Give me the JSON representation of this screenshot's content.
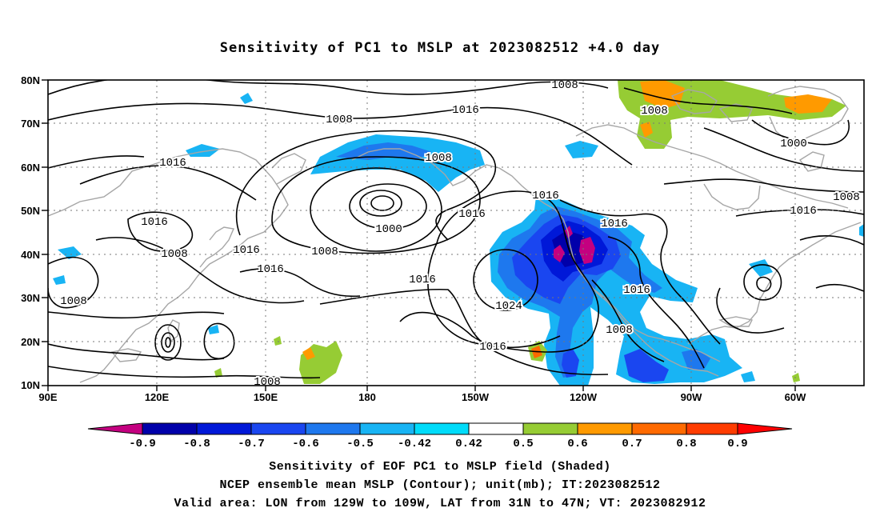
{
  "title": "Sensitivity of PC1 to MSLP at 2023082512 +4.0 day",
  "map": {
    "lat_ticks": [
      "80N",
      "70N",
      "60N",
      "50N",
      "40N",
      "30N",
      "20N",
      "10N"
    ],
    "lon_ticks": [
      "90E",
      "120E",
      "150E",
      "180",
      "150W",
      "120W",
      "90W",
      "60W"
    ],
    "contour_labels": [
      {
        "text": "1008",
        "pos": "top-center"
      },
      {
        "text": "1016",
        "pos": "north-pacific"
      },
      {
        "text": "1008",
        "pos": "bering"
      },
      {
        "text": "1008",
        "pos": "canada-arctic"
      },
      {
        "text": "1000",
        "pos": "greenland"
      },
      {
        "text": "1016",
        "pos": "west-pacific"
      },
      {
        "text": "1008",
        "pos": "aleutian"
      },
      {
        "text": "1016",
        "pos": "alaska-gulf"
      },
      {
        "text": "1016",
        "pos": "northwest-coast"
      },
      {
        "text": "1016",
        "pos": "rockies"
      },
      {
        "text": "1008",
        "pos": "far-east"
      },
      {
        "text": "1016",
        "pos": "east-canada"
      },
      {
        "text": "1016",
        "pos": "asia"
      },
      {
        "text": "1000",
        "pos": "aleutian-low"
      },
      {
        "text": "1008",
        "pos": "japan"
      },
      {
        "text": "1016",
        "pos": "kuril"
      },
      {
        "text": "1008",
        "pos": "low-ring"
      },
      {
        "text": "1016",
        "pos": "central-pacific"
      },
      {
        "text": "1016",
        "pos": "subtropic"
      },
      {
        "text": "1008",
        "pos": "china"
      },
      {
        "text": "1024",
        "pos": "pacific-high"
      },
      {
        "text": "1016",
        "pos": "mexico"
      },
      {
        "text": "1008",
        "pos": "gulf"
      },
      {
        "text": "1016",
        "pos": "tropical-pacific"
      },
      {
        "text": "1008",
        "pos": "equatorial"
      }
    ]
  },
  "colorbar": {
    "labels": [
      "-0.9",
      "-0.8",
      "-0.7",
      "-0.6",
      "-0.5",
      "-0.42",
      "0.42",
      "0.5",
      "0.6",
      "0.7",
      "0.8",
      "0.9"
    ],
    "colors": [
      "#c40080",
      "#0000aa",
      "#0018d8",
      "#1a46f0",
      "#1e78ee",
      "#18b4f4",
      "#00dcfa",
      "#ffffff",
      "#96cc34",
      "#ff9a00",
      "#ff6a00",
      "#ff3c00",
      "#ff0000",
      "#f090c8"
    ]
  },
  "captions": {
    "line1": "Sensitivity of EOF PC1 to MSLP field (Shaded)",
    "line2": "NCEP ensemble mean MSLP (Contour); unit(mb); IT:2023082512",
    "line3": "Valid area: LON from 129W to 109W, LAT from 31N to 47N; VT: 2023082912"
  }
}
